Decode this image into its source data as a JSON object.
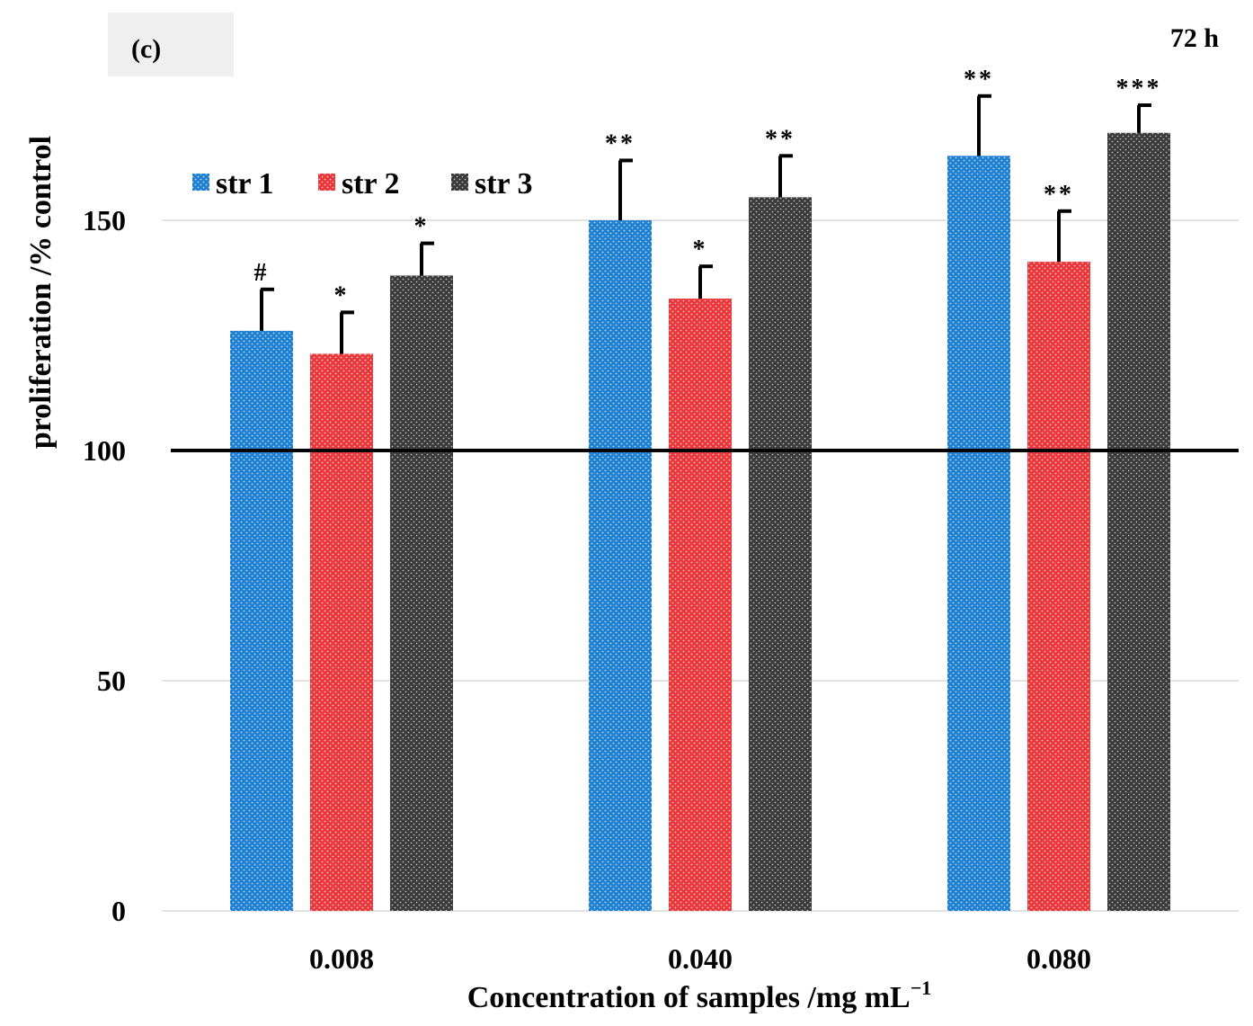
{
  "chart_data": {
    "type": "bar",
    "panel_label": "(c)",
    "time_label": "72 h",
    "xlabel": "Concentration of samples /mg mL",
    "xlabel_superscript": "−1",
    "ylabel": "proliferation /% control",
    "ylim": [
      0,
      170
    ],
    "yticks": [
      0,
      50,
      100,
      150
    ],
    "reference_line": 100,
    "categories": [
      "0.008",
      "0.040",
      "0.080"
    ],
    "series": [
      {
        "name": "str 1",
        "color": "#1f7fd1",
        "values": [
          126,
          150,
          164
        ],
        "errors": [
          9,
          13,
          13
        ],
        "annotations": [
          "#",
          "**",
          "**"
        ]
      },
      {
        "name": "str 2",
        "color": "#e8363a",
        "values": [
          121,
          133,
          141
        ],
        "errors": [
          9,
          7,
          11
        ],
        "annotations": [
          "*",
          "*",
          "**"
        ]
      },
      {
        "name": "str 3",
        "color": "#3a3a3a",
        "values": [
          138,
          155,
          169
        ],
        "errors": [
          7,
          9,
          6
        ],
        "annotations": [
          "*",
          "**",
          "***"
        ]
      }
    ]
  }
}
